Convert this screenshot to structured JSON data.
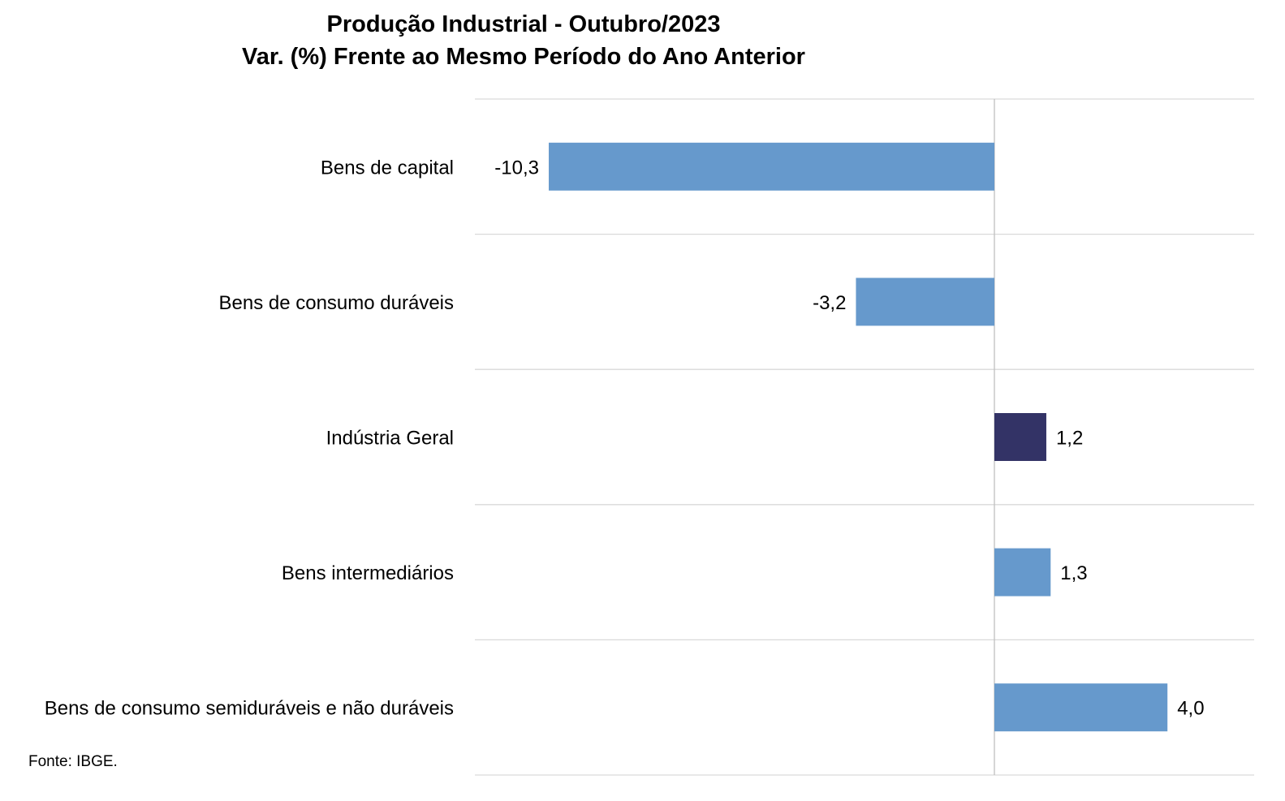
{
  "title": "Produção Industrial - Outubro/2023",
  "subtitle": "Var. (%) Frente ao Mesmo Período do Ano Anterior",
  "source": "Fonte: IBGE.",
  "colors": {
    "bar": "#6699cc",
    "highlight": "#333366",
    "grid": "#d9d9d9",
    "axis": "#bfbfbf"
  },
  "chart_data": {
    "type": "bar",
    "orientation": "horizontal",
    "title": "Produção Industrial - Outubro/2023",
    "subtitle": "Var. (%) Frente ao Mesmo Período do Ano Anterior",
    "categories": [
      "Bens de capital",
      "Bens de consumo duráveis",
      "Indústria Geral",
      "Bens intermediários",
      "Bens de consumo semiduráveis e não duráveis"
    ],
    "values": [
      -10.3,
      -3.2,
      1.2,
      1.3,
      4.0
    ],
    "value_labels": [
      "-10,3",
      "-3,2",
      "1,2",
      "1,3",
      "4,0"
    ],
    "highlight_category": "Indústria Geral",
    "xlim": [
      -12,
      6
    ],
    "grid": true,
    "legend": "none"
  }
}
